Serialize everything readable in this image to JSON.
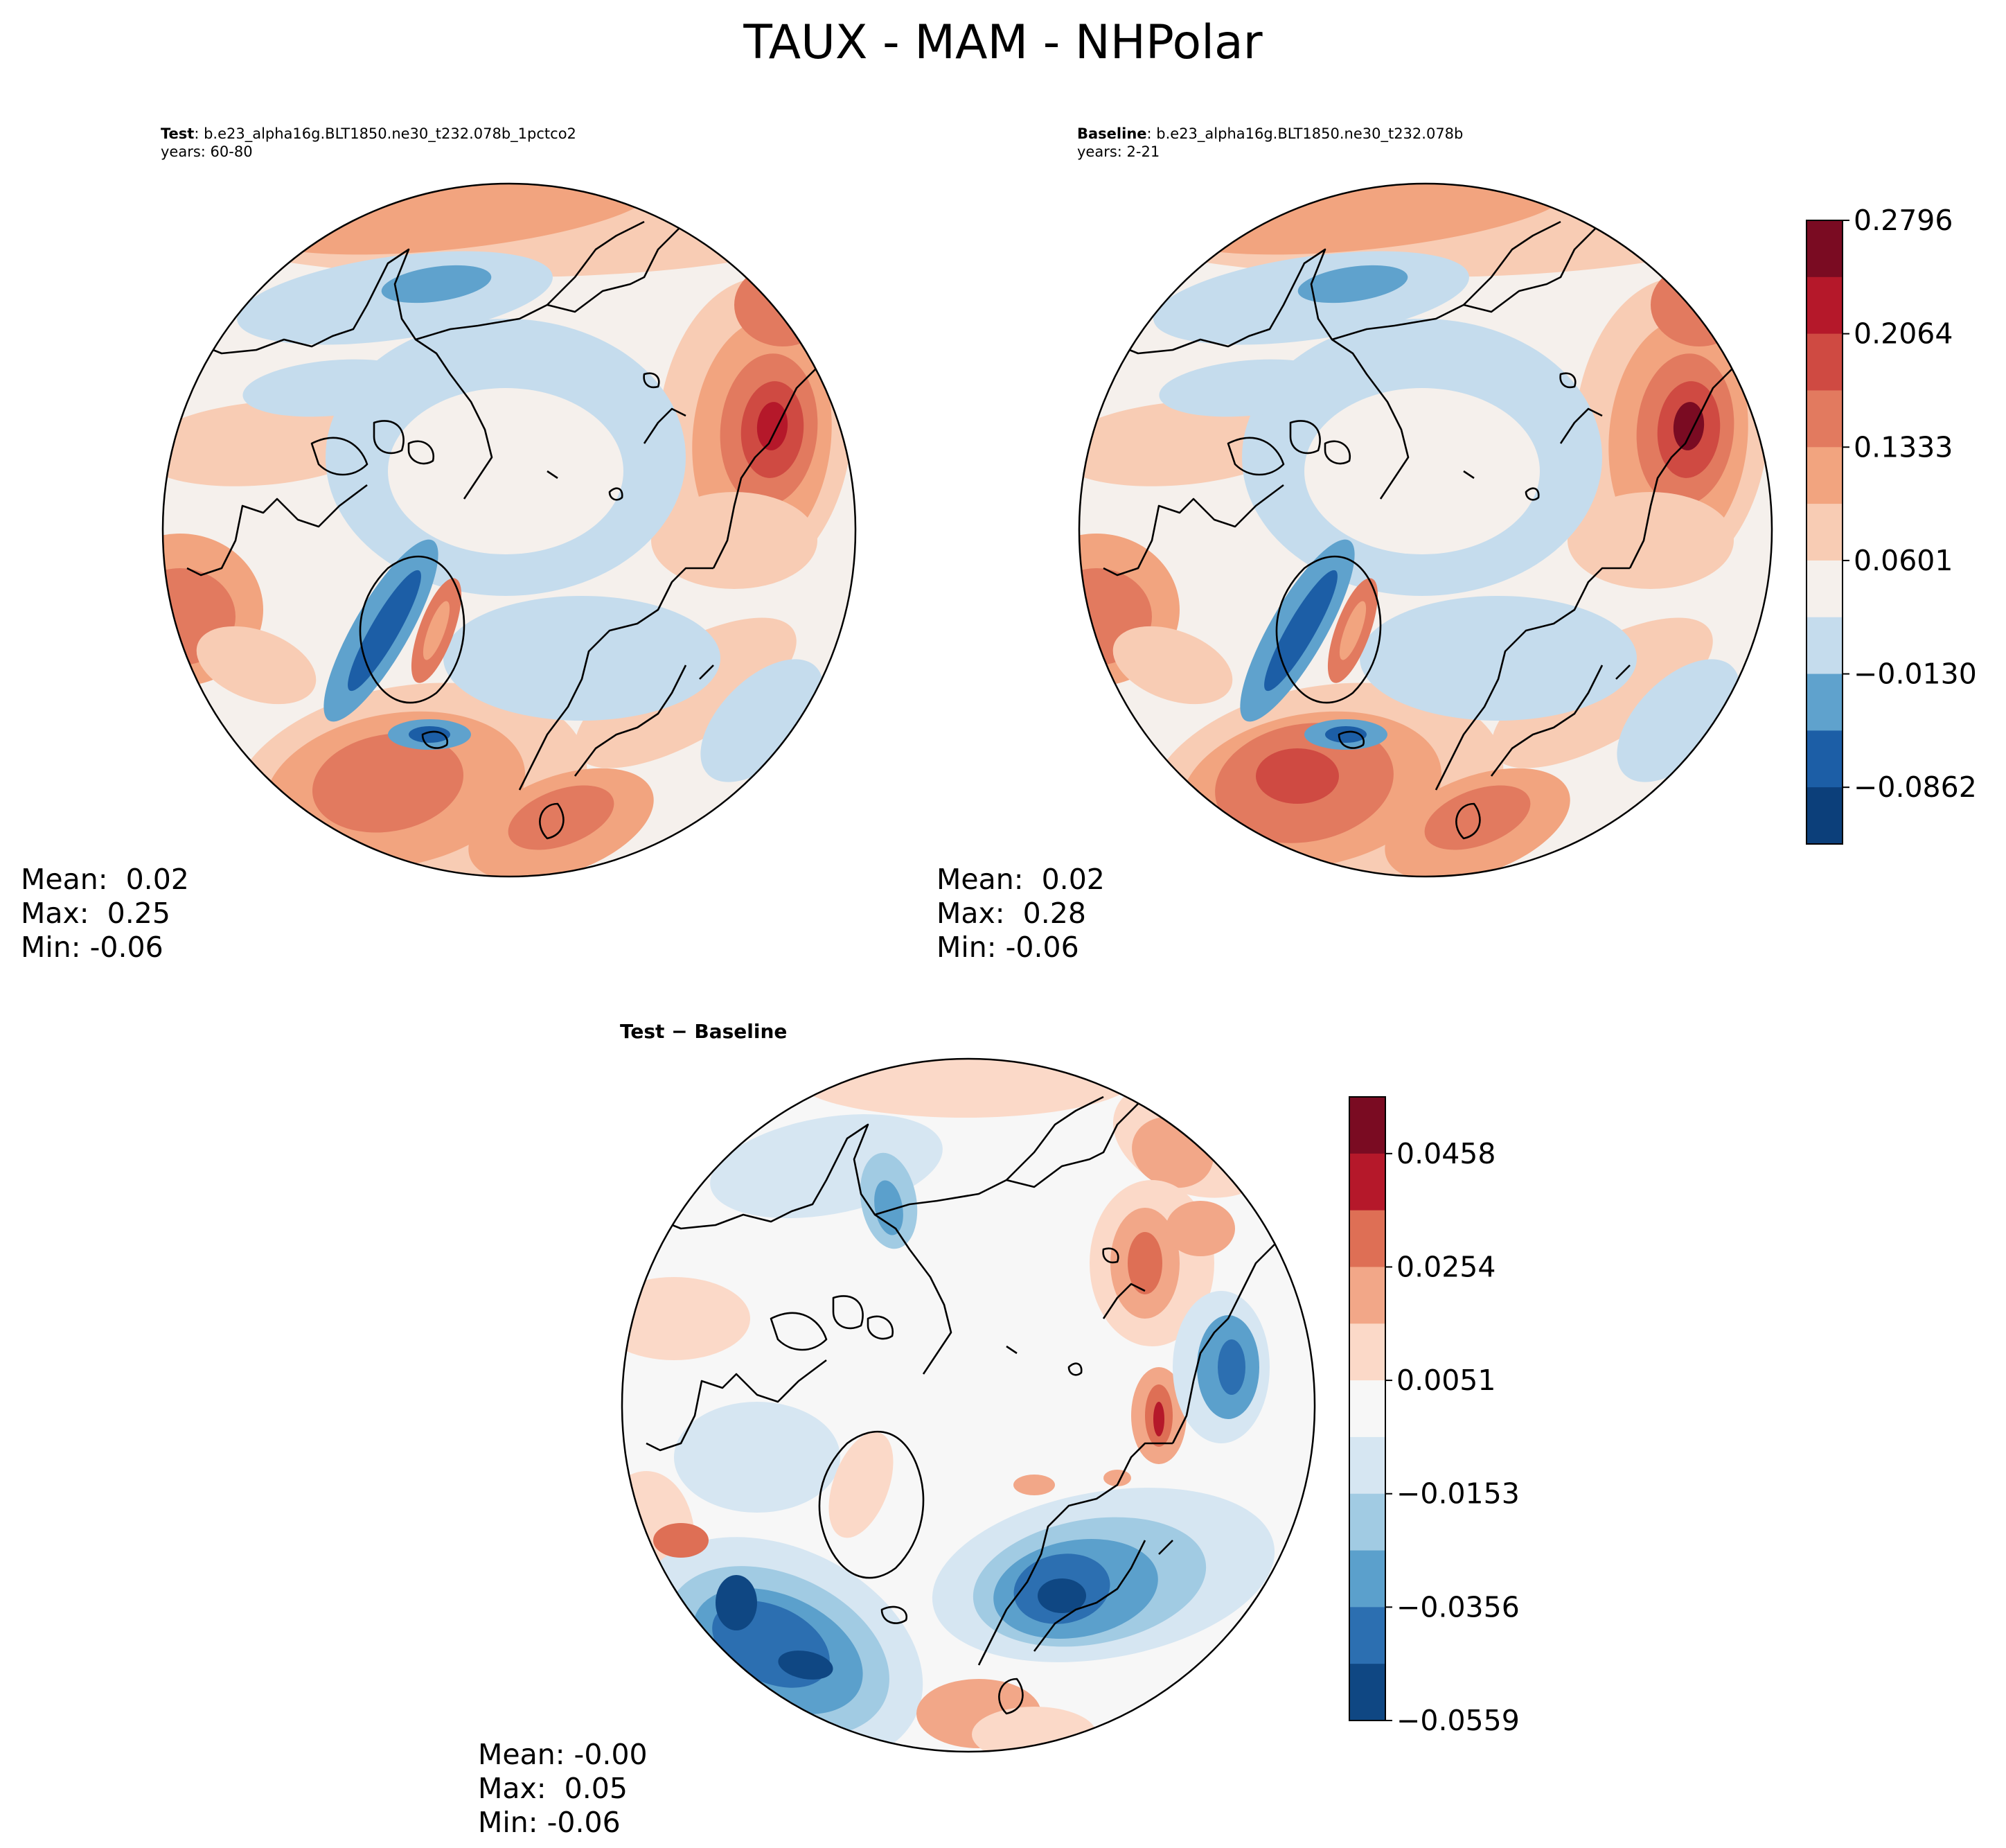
{
  "figure_title": "TAUX - MAM - NHPolar",
  "chart_data": [
    {
      "type": "heatmap",
      "panel": "test",
      "title_bold": "Test",
      "title_rest": ": b.e23_alpha16g.BLT1850.ne30_t232.078b_1pctco2",
      "years": "years: 60-80",
      "projection": "north-polar-stereographic",
      "stats": {
        "mean": "Mean:  0.02",
        "max": "Max:  0.25",
        "min": "Min: -0.06"
      },
      "colorbar_ref": "main"
    },
    {
      "type": "heatmap",
      "panel": "baseline",
      "title_bold": "Baseline",
      "title_rest": ": b.e23_alpha16g.BLT1850.ne30_t232.078b",
      "years": "years: 2-21",
      "projection": "north-polar-stereographic",
      "stats": {
        "mean": "Mean:  0.02",
        "max": "Max:  0.28",
        "min": "Min: -0.06"
      },
      "colorbar_ref": "main"
    },
    {
      "type": "heatmap",
      "panel": "difference",
      "title": "Test − Baseline",
      "projection": "north-polar-stereographic",
      "stats": {
        "mean": "Mean: -0.00",
        "max": "Max:  0.05",
        "min": "Min: -0.06"
      },
      "colorbar_ref": "diff"
    }
  ],
  "colorbars": {
    "main": {
      "ticks": [
        "0.2796",
        "0.2064",
        "0.1333",
        "0.0601",
        "−0.0130",
        "−0.0862"
      ],
      "tick_levels_from_top": [
        0,
        2,
        4,
        6,
        8,
        10
      ],
      "colors_top_to_bottom": [
        "#7a0b22",
        "#b5182a",
        "#cf4a42",
        "#e27a5f",
        "#f2a47f",
        "#f8ccb4",
        "#f5f0ec",
        "#c5dced",
        "#5fa2cd",
        "#1c5ea6",
        "#0c3f7a"
      ]
    },
    "diff": {
      "ticks": [
        "0.0458",
        "0.0254",
        "0.0051",
        "−0.0153",
        "−0.0356",
        "−0.0559"
      ],
      "tick_levels_from_top": [
        1,
        3,
        5,
        7,
        9,
        11
      ],
      "colors_top_to_bottom": [
        "#7a0b22",
        "#b5182a",
        "#de6f55",
        "#f2a788",
        "#fbd9c8",
        "#f7f7f7",
        "#d6e6f2",
        "#a1cbe3",
        "#5ba0cc",
        "#2c6fb1",
        "#0f4783"
      ]
    }
  }
}
